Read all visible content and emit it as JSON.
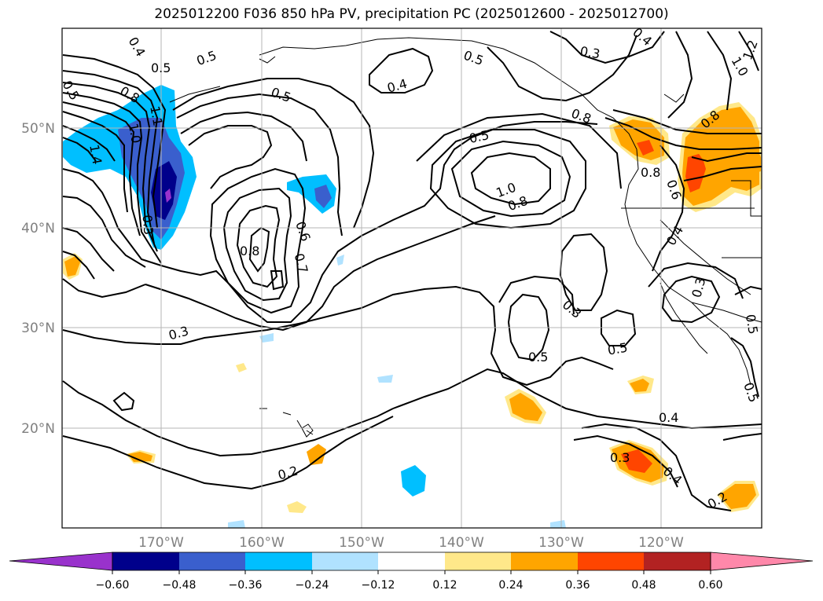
{
  "title": "2025012200 F036 850 hPa PV, precipitation PC (2025012600 - 2025012700)",
  "lon_ticks": [
    "170°W",
    "160°W",
    "150°W",
    "140°W",
    "130°W",
    "120°W"
  ],
  "lat_ticks": [
    "50°N",
    "40°N",
    "30°N",
    "20°N"
  ],
  "colorbar": {
    "labels": [
      "−0.60",
      "−0.48",
      "−0.36",
      "−0.24",
      "−0.12",
      "0.12",
      "0.24",
      "0.36",
      "0.48",
      "0.60"
    ],
    "colors": [
      "#9932cc",
      "#00008b",
      "#3a5fcd",
      "#00bfff",
      "#b0e2ff",
      "#ffffff",
      "#ffe88a",
      "#ffa500",
      "#ff4500",
      "#b22222",
      "#ff88aa"
    ]
  },
  "contour_labels": [
    "0.4",
    "0.5",
    "0.5",
    "0.8",
    "1.0",
    "1.4",
    "1.1",
    "0.3",
    "0.5",
    "0.4",
    "0.5",
    "0.3",
    "0.5",
    "1.0",
    "0.8",
    "0.8",
    "0.6",
    "0.7",
    "0.8",
    "0.3",
    "0.5",
    "0.5",
    "0.3",
    "0.5",
    "0.4",
    "0.2",
    "0.3",
    "0.4",
    "0.2",
    "0.5",
    "0.8",
    "0.6",
    "0.8",
    "0.4",
    "0.3",
    "0.5",
    "1.2",
    "1.0",
    "0.4"
  ]
}
